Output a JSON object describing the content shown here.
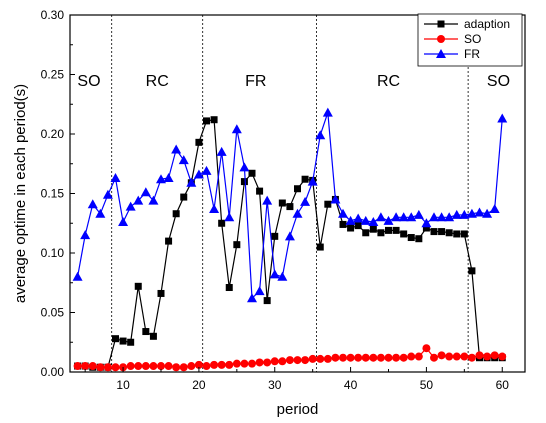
{
  "chart_data": {
    "type": "line",
    "xlabel": "period",
    "ylabel": "average optime in each period(s)",
    "xlim": [
      3,
      63
    ],
    "ylim": [
      0,
      0.3
    ],
    "xticks": [
      10,
      20,
      30,
      40,
      50,
      60
    ],
    "yticks": [
      0.0,
      0.05,
      0.1,
      0.15,
      0.2,
      0.25,
      0.3
    ],
    "ytick_labels": [
      "0.00",
      "0.05",
      "0.10",
      "0.15",
      "0.20",
      "0.25",
      "0.30"
    ],
    "grid": false,
    "legend_position": "top-right",
    "regions": [
      {
        "label": "SO",
        "x_label": 5.5
      },
      {
        "label": "RC",
        "x_label": 14.5
      },
      {
        "label": "FR",
        "x_label": 27.5
      },
      {
        "label": "RC",
        "x_label": 45
      },
      {
        "label": "SO",
        "x_label": 59.5
      }
    ],
    "dividers": [
      8.5,
      20.5,
      35.5,
      55.5
    ],
    "x": [
      4,
      5,
      6,
      7,
      8,
      9,
      10,
      11,
      12,
      13,
      14,
      15,
      16,
      17,
      18,
      19,
      20,
      21,
      22,
      23,
      24,
      25,
      26,
      27,
      28,
      29,
      30,
      31,
      32,
      33,
      34,
      35,
      36,
      37,
      38,
      39,
      40,
      41,
      42,
      43,
      44,
      45,
      46,
      47,
      48,
      49,
      50,
      51,
      52,
      53,
      54,
      55,
      56,
      57,
      58,
      59,
      60
    ],
    "series": [
      {
        "name": "adaption",
        "color": "#000000",
        "marker": "square",
        "values": [
          0.005,
          0.005,
          0.004,
          0.004,
          0.004,
          0.028,
          0.026,
          0.025,
          0.072,
          0.034,
          0.03,
          0.066,
          0.11,
          0.133,
          0.147,
          0.159,
          0.193,
          0.211,
          0.212,
          0.125,
          0.071,
          0.107,
          0.16,
          0.167,
          0.152,
          0.06,
          0.114,
          0.142,
          0.139,
          0.154,
          0.162,
          0.161,
          0.105,
          0.141,
          0.145,
          0.124,
          0.121,
          0.123,
          0.117,
          0.12,
          0.117,
          0.119,
          0.119,
          0.116,
          0.113,
          0.112,
          0.121,
          0.118,
          0.118,
          0.117,
          0.116,
          0.116,
          0.085,
          0.012,
          0.012,
          0.012,
          0.012
        ]
      },
      {
        "name": "SO",
        "color": "#ff0000",
        "marker": "circle",
        "values": [
          0.005,
          0.005,
          0.005,
          0.004,
          0.004,
          0.004,
          0.004,
          0.005,
          0.005,
          0.005,
          0.005,
          0.005,
          0.005,
          0.004,
          0.004,
          0.005,
          0.006,
          0.005,
          0.006,
          0.006,
          0.006,
          0.007,
          0.007,
          0.007,
          0.008,
          0.008,
          0.009,
          0.009,
          0.01,
          0.01,
          0.01,
          0.011,
          0.011,
          0.011,
          0.012,
          0.012,
          0.012,
          0.012,
          0.012,
          0.012,
          0.012,
          0.012,
          0.012,
          0.012,
          0.013,
          0.013,
          0.02,
          0.012,
          0.014,
          0.013,
          0.013,
          0.013,
          0.012,
          0.014,
          0.013,
          0.014,
          0.013
        ]
      },
      {
        "name": "FR",
        "color": "#0000ff",
        "marker": "triangle",
        "values": [
          0.08,
          0.115,
          0.141,
          0.133,
          0.149,
          0.163,
          0.126,
          0.139,
          0.144,
          0.151,
          0.144,
          0.162,
          0.163,
          0.187,
          0.178,
          0.159,
          0.166,
          0.169,
          0.137,
          0.185,
          0.13,
          0.204,
          0.172,
          0.062,
          0.068,
          0.144,
          0.082,
          0.08,
          0.114,
          0.133,
          0.143,
          0.16,
          0.199,
          0.218,
          0.145,
          0.133,
          0.127,
          0.129,
          0.127,
          0.126,
          0.13,
          0.127,
          0.13,
          0.13,
          0.13,
          0.132,
          0.125,
          0.13,
          0.13,
          0.13,
          0.132,
          0.132,
          0.133,
          0.134,
          0.133,
          0.137,
          0.213
        ]
      }
    ]
  }
}
